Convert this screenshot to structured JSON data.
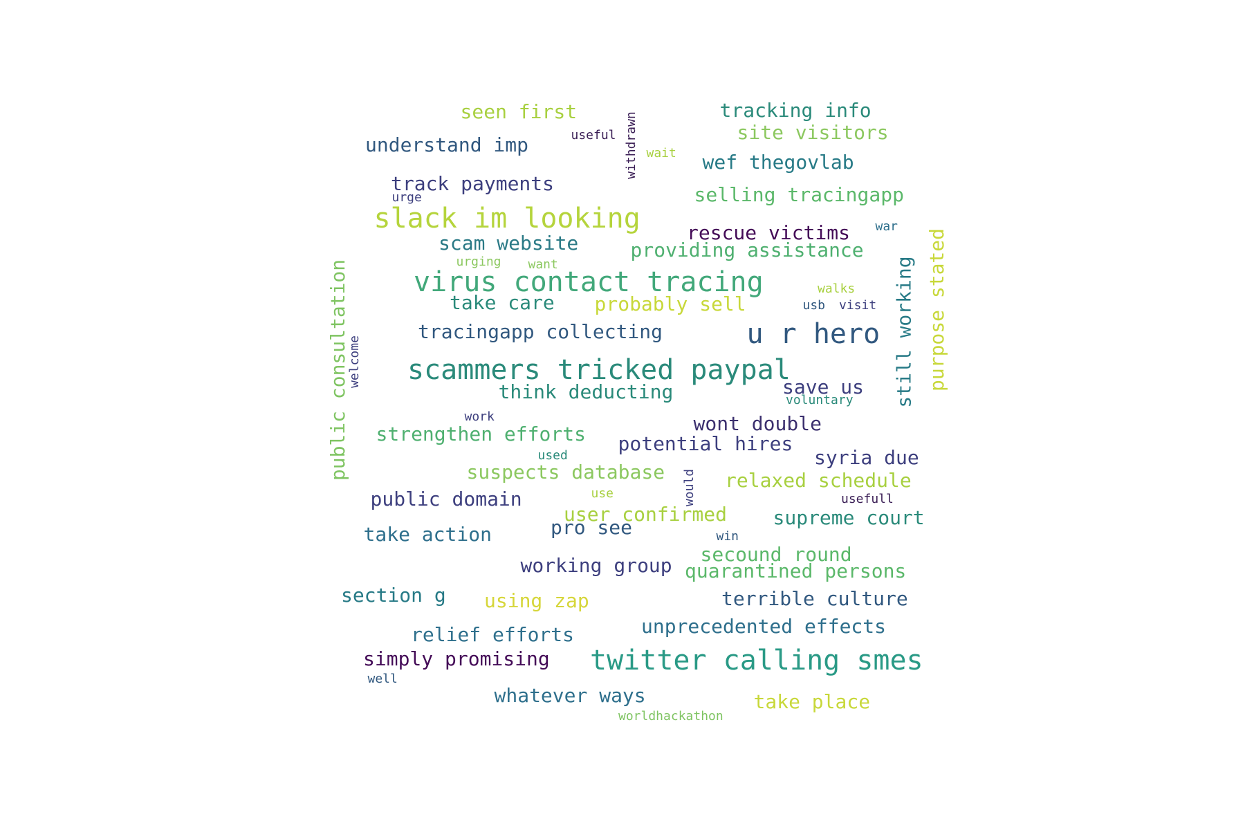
{
  "word_cloud": {
    "words": [
      {
        "text": "seen first",
        "color": "#a8d040"
      },
      {
        "text": "tracking info",
        "color": "#2a8a7a"
      },
      {
        "text": "site visitors",
        "color": "#8cc860"
      },
      {
        "text": "useful",
        "color": "#3b1f56"
      },
      {
        "text": "withdrawn",
        "color": "#3b1f56"
      },
      {
        "text": "understand imp",
        "color": "#31587f"
      },
      {
        "text": "wait",
        "color": "#a8d040"
      },
      {
        "text": "wef thegovlab",
        "color": "#277a86"
      },
      {
        "text": "track payments",
        "color": "#3d3f7e"
      },
      {
        "text": "urge",
        "color": "#3d3f7e"
      },
      {
        "text": "selling tracingapp",
        "color": "#5bb86a"
      },
      {
        "text": "slack im looking",
        "color": "#b5d43c"
      },
      {
        "text": "war",
        "color": "#2e6f8c"
      },
      {
        "text": "rescue victims",
        "color": "#440b57"
      },
      {
        "text": "scam website",
        "color": "#2b7a86"
      },
      {
        "text": "providing assistance",
        "color": "#4fb070"
      },
      {
        "text": "urging",
        "color": "#8cc860"
      },
      {
        "text": "want",
        "color": "#8cc860"
      },
      {
        "text": "virus contact tracing",
        "color": "#42a87a"
      },
      {
        "text": "walks",
        "color": "#a8d040"
      },
      {
        "text": "take care",
        "color": "#2a8a7a"
      },
      {
        "text": "probably sell",
        "color": "#c8d83a"
      },
      {
        "text": "usb",
        "color": "#31587f"
      },
      {
        "text": "visit",
        "color": "#3d3f7e"
      },
      {
        "text": "tracingapp collecting",
        "color": "#31587f"
      },
      {
        "text": "u r hero",
        "color": "#31587f"
      },
      {
        "text": "still working",
        "color": "#277a86"
      },
      {
        "text": "purpose stated",
        "color": "#c8d83a"
      },
      {
        "text": "public consultation",
        "color": "#7fc462"
      },
      {
        "text": "welcome",
        "color": "#3d3f7e"
      },
      {
        "text": "scammers tricked paypal",
        "color": "#2a8a7a"
      },
      {
        "text": "think deducting",
        "color": "#2a8a7a"
      },
      {
        "text": "save us",
        "color": "#3d3f7e"
      },
      {
        "text": "voluntary",
        "color": "#2a8a7a"
      },
      {
        "text": "work",
        "color": "#3d3f7e"
      },
      {
        "text": "wont double",
        "color": "#3b2f6e"
      },
      {
        "text": "strengthen efforts",
        "color": "#4fb070"
      },
      {
        "text": "potential hires",
        "color": "#3d3f7e"
      },
      {
        "text": "used",
        "color": "#2a8a7a"
      },
      {
        "text": "syria due",
        "color": "#3d3f7e"
      },
      {
        "text": "suspects database",
        "color": "#8cc860"
      },
      {
        "text": "would",
        "color": "#3d3f7e"
      },
      {
        "text": "relaxed schedule",
        "color": "#a8d040"
      },
      {
        "text": "use",
        "color": "#a8d040"
      },
      {
        "text": "usefull",
        "color": "#3b1f56"
      },
      {
        "text": "public domain",
        "color": "#3d3f7e"
      },
      {
        "text": "user confirmed",
        "color": "#a8d040"
      },
      {
        "text": "pro see",
        "color": "#31587f"
      },
      {
        "text": "supreme court",
        "color": "#2a8a7a"
      },
      {
        "text": "take action",
        "color": "#2e6f8c"
      },
      {
        "text": "win",
        "color": "#31587f"
      },
      {
        "text": "secound round",
        "color": "#5bb86a"
      },
      {
        "text": "working group",
        "color": "#3d3f7e"
      },
      {
        "text": "quarantined persons",
        "color": "#5bb86a"
      },
      {
        "text": "section g",
        "color": "#277a86"
      },
      {
        "text": "using zap",
        "color": "#d6d63a"
      },
      {
        "text": "terrible culture",
        "color": "#31587f"
      },
      {
        "text": "unprecedented effects",
        "color": "#2e6f8c"
      },
      {
        "text": "relief efforts",
        "color": "#2e6f8c"
      },
      {
        "text": "simply promising",
        "color": "#440b57"
      },
      {
        "text": "twitter calling smes",
        "color": "#2a9a86"
      },
      {
        "text": "well",
        "color": "#31587f"
      },
      {
        "text": "whatever ways",
        "color": "#2e6f8c"
      },
      {
        "text": "take place",
        "color": "#c8d83a"
      },
      {
        "text": "worldhackathon",
        "color": "#7fc462"
      }
    ]
  }
}
